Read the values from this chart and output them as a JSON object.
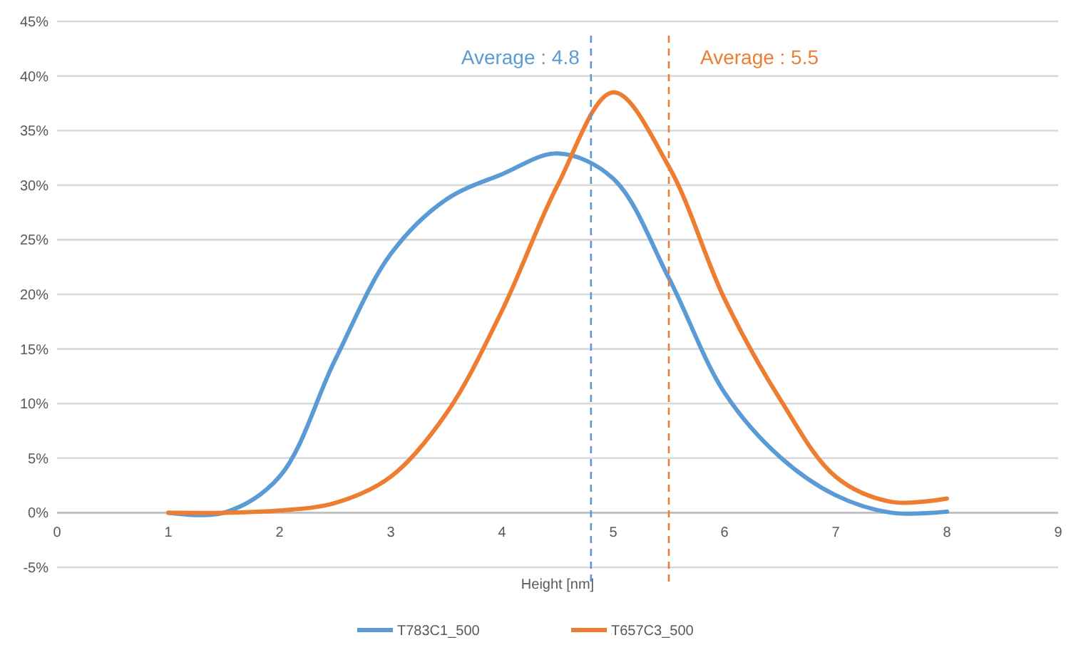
{
  "chart_data": {
    "type": "line",
    "xlabel": "Height [nm]",
    "xlim": [
      0,
      9
    ],
    "xticks": [
      0,
      1,
      2,
      3,
      4,
      5,
      6,
      7,
      8,
      9
    ],
    "ylim": [
      -5,
      45
    ],
    "yticks": [
      {
        "value": -5,
        "label": "-5%"
      },
      {
        "value": 0,
        "label": "0%"
      },
      {
        "value": 5,
        "label": "5%"
      },
      {
        "value": 10,
        "label": "10%"
      },
      {
        "value": 15,
        "label": "15%"
      },
      {
        "value": 20,
        "label": "20%"
      },
      {
        "value": 25,
        "label": "25%"
      },
      {
        "value": 30,
        "label": "30%"
      },
      {
        "value": 35,
        "label": "35%"
      },
      {
        "value": 40,
        "label": "40%"
      },
      {
        "value": 45,
        "label": "45%"
      }
    ],
    "grid": "y",
    "legend": "bottom",
    "marker": "none",
    "line_style": "solid",
    "x": [
      1,
      1.5,
      2,
      2.5,
      3,
      3.5,
      4,
      4.5,
      5,
      5.5,
      6,
      6.5,
      7,
      7.5,
      8
    ],
    "series": [
      {
        "name": "T783C1_500",
        "color": "#5b9bd5",
        "values": [
          0,
          0,
          3.3,
          14,
          23.7,
          28.7,
          31,
          32.9,
          30.6,
          21.5,
          11,
          5.1,
          1.6,
          0,
          0.1
        ]
      },
      {
        "name": "T657C3_500",
        "color": "#ed7d31",
        "values": [
          0,
          0,
          0.2,
          0.9,
          3.3,
          9.1,
          18.5,
          30,
          38.5,
          31.7,
          19.6,
          10.4,
          3.3,
          1,
          1.3
        ]
      }
    ],
    "ref_lines": [
      {
        "axis": "x",
        "value": 4.8,
        "label": "Average : 4.8",
        "color": "#5b9bd5",
        "line_style": "dashed"
      },
      {
        "axis": "x",
        "value": 5.5,
        "label": "Average : 5.5",
        "color": "#ed7d31",
        "line_style": "dashed"
      }
    ]
  }
}
